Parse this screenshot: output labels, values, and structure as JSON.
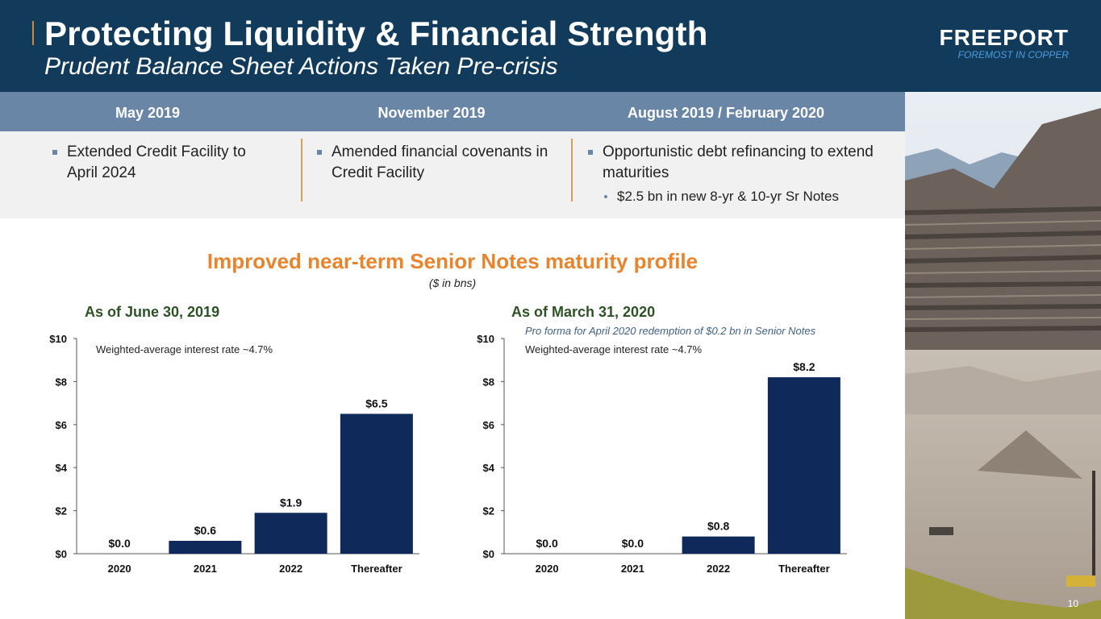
{
  "header": {
    "title": "Protecting Liquidity & Financial Strength",
    "subtitle": "Prudent Balance Sheet Actions Taken Pre-crisis",
    "logo_name": "FREEPORT",
    "logo_tagline": "FOREMOST IN COPPER"
  },
  "colors": {
    "header_bg": "#123a5a",
    "band_bg": "#6a86a6",
    "accent_orange": "#e8832e",
    "bar_fill": "#0f2a5a",
    "chart_title_green": "#2e5226"
  },
  "timeline": [
    {
      "heading": "May 2019",
      "bullet": "Extended Credit Facility to April 2024",
      "sub": ""
    },
    {
      "heading": "November 2019",
      "bullet": "Amended financial covenants in Credit Facility",
      "sub": ""
    },
    {
      "heading": "August 2019 / February 2020",
      "bullet": "Opportunistic debt refinancing to extend maturities",
      "sub": "$2.5 bn in new 8-yr & 10-yr Sr Notes"
    }
  ],
  "section": {
    "title": "Improved near-term Senior Notes maturity profile",
    "units": "($ in bns)"
  },
  "page_number": "10",
  "chart_data": [
    {
      "type": "bar",
      "title": "As of June 30, 2019",
      "note": "Weighted-average interest rate ~4.7%",
      "note_italic": "",
      "categories": [
        "2020",
        "2021",
        "2022",
        "Thereafter"
      ],
      "values": [
        0.0,
        0.6,
        1.9,
        6.5
      ],
      "value_labels": [
        "$0.0",
        "$0.6",
        "$1.9",
        "$6.5"
      ],
      "yticks": [
        "$0",
        "$2",
        "$4",
        "$6",
        "$8",
        "$10"
      ],
      "ylim": [
        0,
        10
      ],
      "xlabel": "",
      "ylabel": ""
    },
    {
      "type": "bar",
      "title": "As of March 31, 2020",
      "note": "Weighted-average interest rate ~4.7%",
      "note_italic": "Pro forma for April 2020 redemption of $0.2 bn in Senior Notes",
      "categories": [
        "2020",
        "2021",
        "2022",
        "Thereafter"
      ],
      "values": [
        0.0,
        0.0,
        0.8,
        8.2
      ],
      "value_labels": [
        "$0.0",
        "$0.0",
        "$0.8",
        "$8.2"
      ],
      "yticks": [
        "$0",
        "$2",
        "$4",
        "$6",
        "$8",
        "$10"
      ],
      "ylim": [
        0,
        10
      ],
      "xlabel": "",
      "ylabel": ""
    }
  ]
}
